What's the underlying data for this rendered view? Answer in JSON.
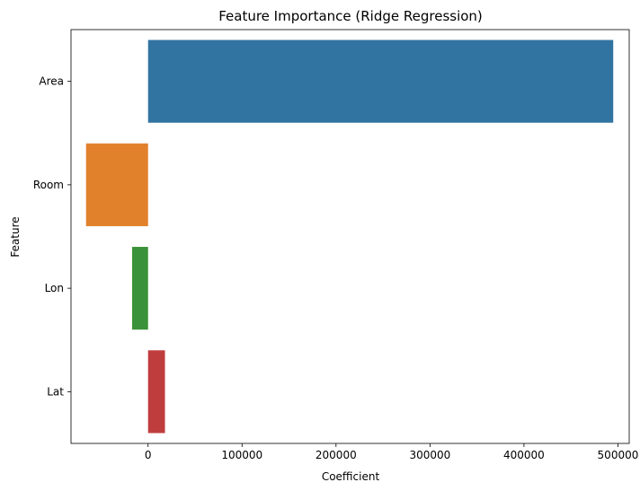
{
  "chart_data": {
    "type": "bar",
    "orientation": "horizontal",
    "title": "Feature Importance (Ridge Regression)",
    "xlabel": "Coefficient",
    "ylabel": "Feature",
    "categories": [
      "Area",
      "Room",
      "Lon",
      "Lat"
    ],
    "values": [
      495000,
      -66000,
      -17000,
      18000
    ],
    "colors": [
      "#3274a1",
      "#e1812c",
      "#3a923a",
      "#c03d3e"
    ],
    "xlim": [
      -82000,
      512000
    ],
    "xticks": [
      0,
      100000,
      200000,
      300000,
      400000,
      500000
    ],
    "xtick_labels": [
      "0",
      "100000",
      "200000",
      "300000",
      "400000",
      "500000"
    ],
    "grid": false,
    "legend": "none"
  }
}
